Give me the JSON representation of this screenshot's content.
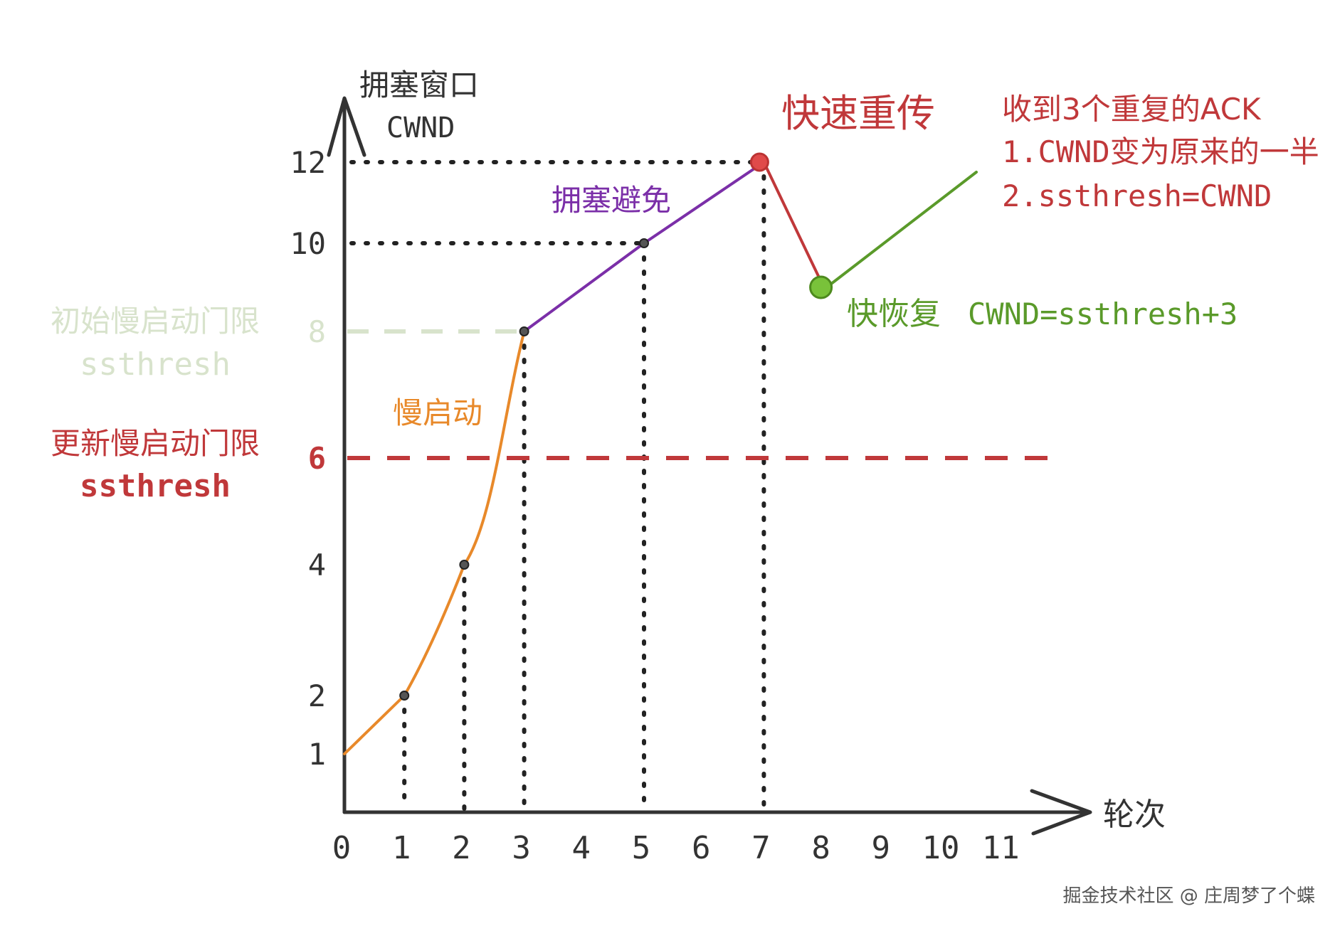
{
  "axes": {
    "y_title": "拥塞窗口",
    "y_subtitle": "CWND",
    "x_title": "轮次",
    "x_ticks": [
      "0",
      "1",
      "2",
      "3",
      "4",
      "5",
      "6",
      "7",
      "8",
      "9",
      "10",
      "11"
    ],
    "y_ticks": [
      "1",
      "2",
      "4",
      "6",
      "8",
      "10",
      "12"
    ]
  },
  "labels": {
    "slow_start": "慢启动",
    "congestion_avoidance": "拥塞避免",
    "fast_retransmit": "快速重传",
    "fast_recovery": "快恢复",
    "fast_recovery_formula": "CWND=ssthresh+3",
    "ack_note_1": "收到3个重复的ACK",
    "ack_note_2": "1.CWND变为原来的一半",
    "ack_note_3": "2.ssthresh=CWND",
    "initial_threshold": "初始慢启动门限",
    "initial_threshold_var": "ssthresh",
    "updated_threshold": "更新慢启动门限",
    "updated_threshold_var": "ssthresh"
  },
  "colors": {
    "axis": "#333333",
    "slow_start": "#e8892a",
    "avoidance": "#7b2fa8",
    "retransmit": "#c0383a",
    "recovery": "#5a9a2a",
    "initial_threshold": "#d8e3cc",
    "updated_threshold": "#c0383a"
  },
  "chart_data": {
    "type": "line",
    "series": [
      {
        "name": "慢启动",
        "x": [
          0,
          1,
          2,
          3
        ],
        "y": [
          1,
          2,
          4,
          8
        ]
      },
      {
        "name": "拥塞避免",
        "x": [
          3,
          5,
          7
        ],
        "y": [
          8,
          10,
          12
        ]
      },
      {
        "name": "快速重传",
        "x": [
          7,
          8
        ],
        "y": [
          12,
          9
        ]
      },
      {
        "name": "快恢复",
        "x": [
          8,
          10.5
        ],
        "y": [
          9,
          12
        ]
      }
    ],
    "thresholds": [
      {
        "label": "初始慢启动门限",
        "value": 8
      },
      {
        "label": "更新慢启动门限",
        "value": 6
      }
    ],
    "xlim": [
      0,
      11
    ],
    "ylim": [
      0,
      12
    ]
  },
  "watermark": "掘金技术社区 @ 庄周梦了个蝶"
}
